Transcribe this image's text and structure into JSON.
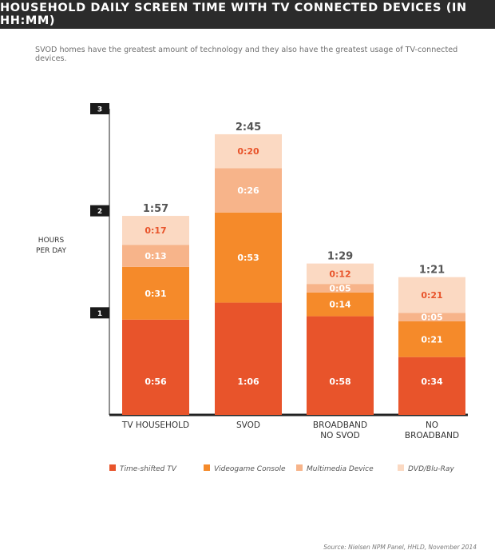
{
  "chart_data": {
    "type": "bar",
    "title": "HOUSEHOLD DAILY SCREEN TIME WITH TV CONNECTED DEVICES (IN HH:MM)",
    "subtitle": "SVOD homes have the greatest amount of technology and they also have the greatest usage of TV-connected devices.",
    "ylabel": "HOURS PER DAY",
    "ylabel_lines": [
      "HOURS",
      "PER DAY"
    ],
    "y_ticks": [
      "1",
      "2",
      "3"
    ],
    "ylim": [
      0,
      3
    ],
    "stacked": true,
    "categories": [
      "TV HOUSEHOLD",
      "SVOD",
      "BROADBAND NO SVOD",
      "NO BROADBAND"
    ],
    "category_lines": [
      [
        "TV HOUSEHOLD"
      ],
      [
        "SVOD"
      ],
      [
        "BROADBAND",
        "NO SVOD"
      ],
      [
        "NO",
        "BROADBAND"
      ]
    ],
    "totals": [
      "1:57",
      "2:45",
      "1:29",
      "1:21"
    ],
    "series": [
      {
        "name": "Time-shifted TV",
        "color": "#e8542b",
        "values_minutes": [
          56,
          66,
          58,
          34
        ],
        "labels": [
          "0:56",
          "1:06",
          "0:58",
          "0:34"
        ]
      },
      {
        "name": "Videogame Console",
        "color": "#f58a2a",
        "values_minutes": [
          31,
          53,
          14,
          21
        ],
        "labels": [
          "0:31",
          "0:53",
          "0:14",
          "0:21"
        ]
      },
      {
        "name": "Multimedia Device",
        "color": "#f7b48a",
        "values_minutes": [
          13,
          26,
          5,
          5
        ],
        "labels": [
          "0:13",
          "0:26",
          "0:05",
          "0:05"
        ]
      },
      {
        "name": "DVD/Blu-Ray",
        "color": "#fbd9c2",
        "values_minutes": [
          17,
          20,
          12,
          21
        ],
        "labels": [
          "0:17",
          "0:20",
          "0:12",
          "0:21"
        ]
      }
    ],
    "legend_position": "bottom",
    "grid": false
  },
  "source": "Source: Nielsen NPM Panel, HHLD, November 2014"
}
